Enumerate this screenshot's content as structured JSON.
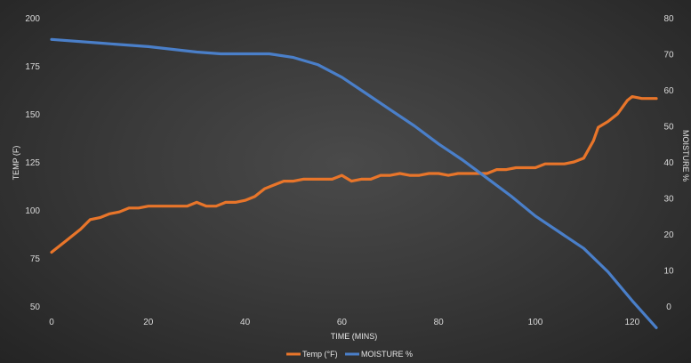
{
  "chart_data": {
    "type": "line",
    "title": "",
    "xlabel": "TIME (MINS)",
    "ylabel_left": "TEMP (F)",
    "ylabel_right": "MOISTURE %",
    "xlim": [
      0,
      125
    ],
    "ylim_left": [
      50,
      200
    ],
    "ylim_right": [
      0,
      80
    ],
    "x_ticks": [
      "0",
      "20",
      "40",
      "60",
      "80",
      "100",
      "120"
    ],
    "y_left_ticks": [
      "50",
      "75",
      "100",
      "125",
      "150",
      "175",
      "200"
    ],
    "y_right_ticks": [
      "0",
      "10",
      "20",
      "30",
      "40",
      "50",
      "60",
      "70",
      "80"
    ],
    "grid": false,
    "legend_position": "bottom",
    "background_color": "#3a3a3a",
    "series": [
      {
        "name": "Temp (°F)",
        "axis": "left",
        "color": "#e8752a",
        "points": [
          [
            0,
            78
          ],
          [
            3,
            84
          ],
          [
            6,
            90
          ],
          [
            8,
            95
          ],
          [
            10,
            96
          ],
          [
            12,
            98
          ],
          [
            14,
            99
          ],
          [
            16,
            101
          ],
          [
            18,
            101
          ],
          [
            20,
            102
          ],
          [
            22,
            102
          ],
          [
            24,
            102
          ],
          [
            26,
            102
          ],
          [
            28,
            102
          ],
          [
            30,
            104
          ],
          [
            32,
            102
          ],
          [
            34,
            102
          ],
          [
            36,
            104
          ],
          [
            38,
            104
          ],
          [
            40,
            105
          ],
          [
            42,
            107
          ],
          [
            44,
            111
          ],
          [
            46,
            113
          ],
          [
            48,
            115
          ],
          [
            50,
            115
          ],
          [
            52,
            116
          ],
          [
            54,
            116
          ],
          [
            56,
            116
          ],
          [
            58,
            116
          ],
          [
            60,
            118
          ],
          [
            62,
            115
          ],
          [
            64,
            116
          ],
          [
            66,
            116
          ],
          [
            68,
            118
          ],
          [
            70,
            118
          ],
          [
            72,
            119
          ],
          [
            74,
            118
          ],
          [
            76,
            118
          ],
          [
            78,
            119
          ],
          [
            80,
            119
          ],
          [
            82,
            118
          ],
          [
            84,
            119
          ],
          [
            86,
            119
          ],
          [
            88,
            119
          ],
          [
            90,
            119
          ],
          [
            92,
            121
          ],
          [
            94,
            121
          ],
          [
            96,
            122
          ],
          [
            98,
            122
          ],
          [
            100,
            122
          ],
          [
            102,
            124
          ],
          [
            104,
            124
          ],
          [
            106,
            124
          ],
          [
            108,
            125
          ],
          [
            110,
            127
          ],
          [
            112,
            136
          ],
          [
            113,
            143
          ],
          [
            115,
            146
          ],
          [
            117,
            150
          ],
          [
            119,
            157
          ],
          [
            120,
            159
          ],
          [
            122,
            158
          ],
          [
            125,
            158
          ]
        ]
      },
      {
        "name": "MOISTURE %",
        "axis": "right",
        "color": "#4a7fc9",
        "points": [
          [
            0,
            74
          ],
          [
            10,
            73
          ],
          [
            20,
            72
          ],
          [
            30,
            70.5
          ],
          [
            35,
            70
          ],
          [
            45,
            70
          ],
          [
            50,
            69
          ],
          [
            55,
            67
          ],
          [
            60,
            63.5
          ],
          [
            65,
            59
          ],
          [
            70,
            54.5
          ],
          [
            75,
            50
          ],
          [
            80,
            45
          ],
          [
            85,
            40.5
          ],
          [
            90,
            35.5
          ],
          [
            95,
            30.5
          ],
          [
            100,
            25
          ],
          [
            105,
            20.5
          ],
          [
            110,
            16
          ],
          [
            115,
            9.5
          ],
          [
            120,
            1.5
          ],
          [
            125,
            -6
          ]
        ]
      }
    ]
  }
}
